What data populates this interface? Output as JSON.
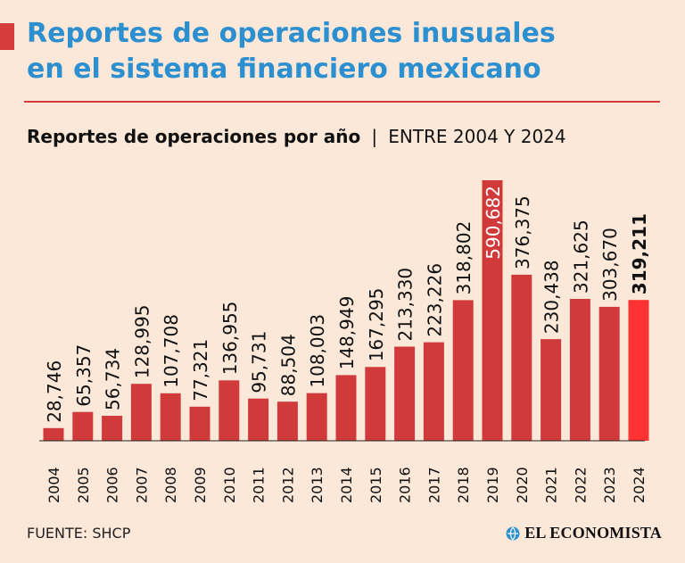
{
  "header": {
    "title_line1": "Reportes de operaciones inusuales",
    "title_line2": "en el sistema financiero mexicano",
    "subtitle_main": "Reportes de operaciones por año",
    "subtitle_separator": "|",
    "subtitle_range": "ENTRE 2004 Y 2024"
  },
  "colors": {
    "background": "#fbe8d8",
    "title": "#2c8fd0",
    "bar": "#d13a3a",
    "highlight_bar": "#ff3333",
    "rule": "#d63b3b"
  },
  "chart_data": {
    "type": "bar",
    "title": "Reportes de operaciones por año",
    "categories": [
      "2004",
      "2005",
      "2006",
      "2007",
      "2008",
      "2009",
      "2010",
      "2011",
      "2012",
      "2013",
      "2014",
      "2015",
      "2016",
      "2017",
      "2018",
      "2019",
      "2020",
      "2021",
      "2022",
      "2023",
      "2024"
    ],
    "values": [
      28746,
      65357,
      56734,
      128995,
      107708,
      77321,
      136955,
      95731,
      88504,
      108003,
      148949,
      167295,
      213330,
      223226,
      318802,
      590682,
      376375,
      230438,
      321625,
      303670,
      319211
    ],
    "value_labels": [
      "28,746",
      "65,357",
      "56,734",
      "128,995",
      "107,708",
      "77,321",
      "136,955",
      "95,731",
      "88,504",
      "108,003",
      "148,949",
      "167,295",
      "213,330",
      "223,226",
      "318,802",
      "590,682",
      "376,375",
      "230,438",
      "321,625",
      "303,670",
      "319,211"
    ],
    "highlight_category": "2024",
    "ylim": [
      0,
      590682
    ],
    "grid": false,
    "legend": "none"
  },
  "footer": {
    "source": "FUENTE: SHCP",
    "brand_name": "EL ECONOMISTA",
    "brand_icon": "globe-icon"
  }
}
